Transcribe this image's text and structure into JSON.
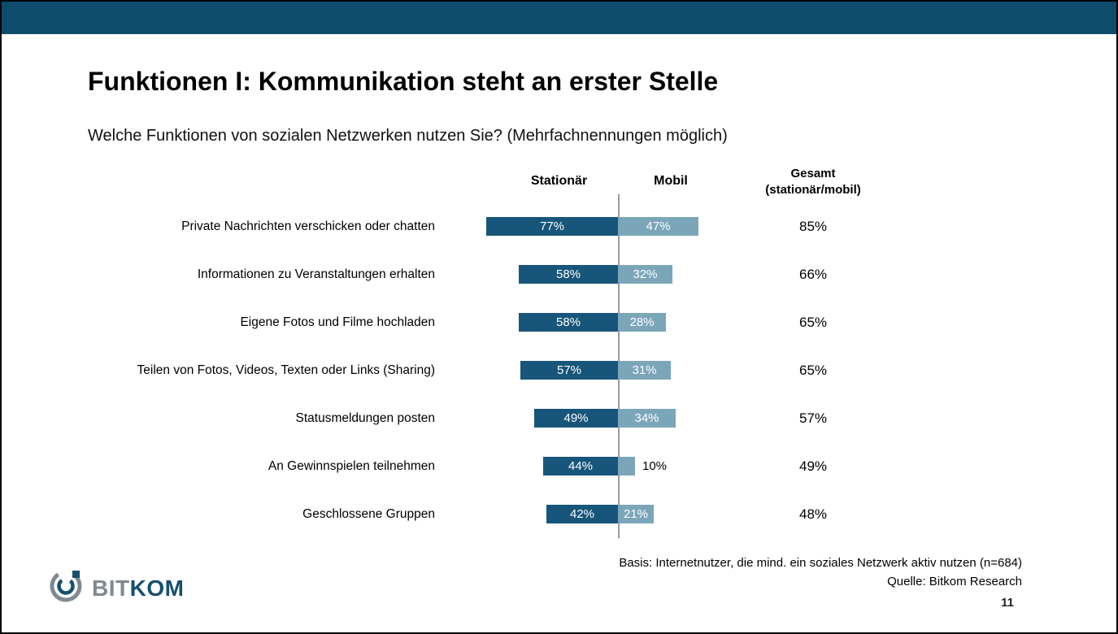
{
  "slide": {
    "title": "Funktionen I: Kommunikation steht an erster Stelle",
    "subtitle": "Welche Funktionen von sozialen Netzwerken nutzen Sie? (Mehrfachnennungen möglich)",
    "footer": {
      "basis": "Basis:  Internetnutzer, die mind. ein soziales Netzwerk aktiv nutzen (n=684)",
      "source": "Quelle: Bitkom Research",
      "page_number": "11"
    },
    "logo": {
      "bit": "BIT",
      "kom": "KOM"
    }
  },
  "chart_data": {
    "type": "bar",
    "variant": "horizontal-diverging",
    "headers": {
      "stationaer": "Stationär",
      "mobil": "Mobil",
      "gesamt_line1": "Gesamt",
      "gesamt_line2": "(stationär/mobil)"
    },
    "unit": "%",
    "categories": [
      "Private Nachrichten verschicken oder chatten",
      "Informationen zu Veranstaltungen erhalten",
      "Eigene Fotos und Filme hochladen",
      "Teilen von Fotos, Videos, Texten oder Links (Sharing)",
      "Statusmeldungen posten",
      "An Gewinnspielen teilnehmen",
      "Geschlossene Gruppen"
    ],
    "series": [
      {
        "name": "Stationär",
        "values": [
          77,
          58,
          58,
          57,
          49,
          44,
          42
        ]
      },
      {
        "name": "Mobil",
        "values": [
          47,
          32,
          28,
          31,
          34,
          10,
          21
        ]
      },
      {
        "name": "Gesamt (stationär/mobil)",
        "values": [
          85,
          66,
          65,
          65,
          57,
          49,
          48
        ]
      }
    ],
    "rows": [
      {
        "label": "Private Nachrichten verschicken oder chatten",
        "stationaer": 77,
        "mobil": 47,
        "gesamt": 85,
        "stationaer_text": "77%",
        "mobil_text": "47%",
        "gesamt_text": "85%"
      },
      {
        "label": "Informationen zu Veranstaltungen erhalten",
        "stationaer": 58,
        "mobil": 32,
        "gesamt": 66,
        "stationaer_text": "58%",
        "mobil_text": "32%",
        "gesamt_text": "66%"
      },
      {
        "label": "Eigene Fotos und Filme hochladen",
        "stationaer": 58,
        "mobil": 28,
        "gesamt": 65,
        "stationaer_text": "58%",
        "mobil_text": "28%",
        "gesamt_text": "65%"
      },
      {
        "label": "Teilen von Fotos, Videos, Texten oder Links (Sharing)",
        "stationaer": 57,
        "mobil": 31,
        "gesamt": 65,
        "stationaer_text": "57%",
        "mobil_text": "31%",
        "gesamt_text": "65%"
      },
      {
        "label": "Statusmeldungen posten",
        "stationaer": 49,
        "mobil": 34,
        "gesamt": 57,
        "stationaer_text": "49%",
        "mobil_text": "34%",
        "gesamt_text": "57%"
      },
      {
        "label": "An Gewinnspielen teilnehmen",
        "stationaer": 44,
        "mobil": 10,
        "gesamt": 49,
        "stationaer_text": "44%",
        "mobil_text": "10%",
        "gesamt_text": "49%"
      },
      {
        "label": "Geschlossene Gruppen",
        "stationaer": 42,
        "mobil": 21,
        "gesamt": 48,
        "stationaer_text": "42%",
        "mobil_text": "21%",
        "gesamt_text": "48%"
      }
    ],
    "colors": {
      "stationaer": "#17567a",
      "mobil": "#7ba6ba",
      "axis_line": "#9b9b9b",
      "banner": "#0e4c6e"
    },
    "layout": {
      "legend": "none",
      "grid": false
    }
  }
}
